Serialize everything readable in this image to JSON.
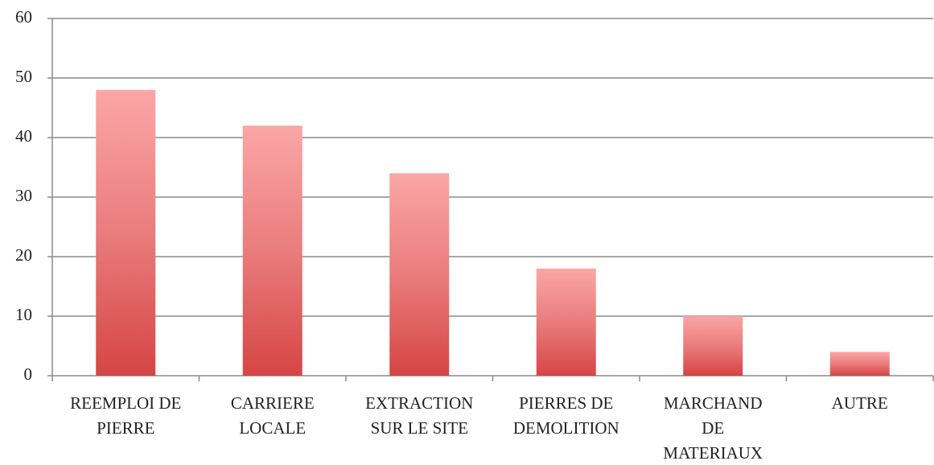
{
  "chart_data": {
    "type": "bar",
    "categories": [
      "REEMPLOI DE\nPIERRE",
      "CARRIERE\nLOCALE",
      "EXTRACTION\nSUR LE SITE",
      "PIERRES DE\nDEMOLITION",
      "MARCHAND\nDE\nMATERIAUX",
      "AUTRE"
    ],
    "values": [
      48,
      42,
      34,
      18,
      10,
      4
    ],
    "color": "#d64545",
    "ylim": [
      0,
      60
    ],
    "yticks": [
      0,
      10,
      20,
      30,
      40,
      50,
      60
    ],
    "grid": true
  }
}
